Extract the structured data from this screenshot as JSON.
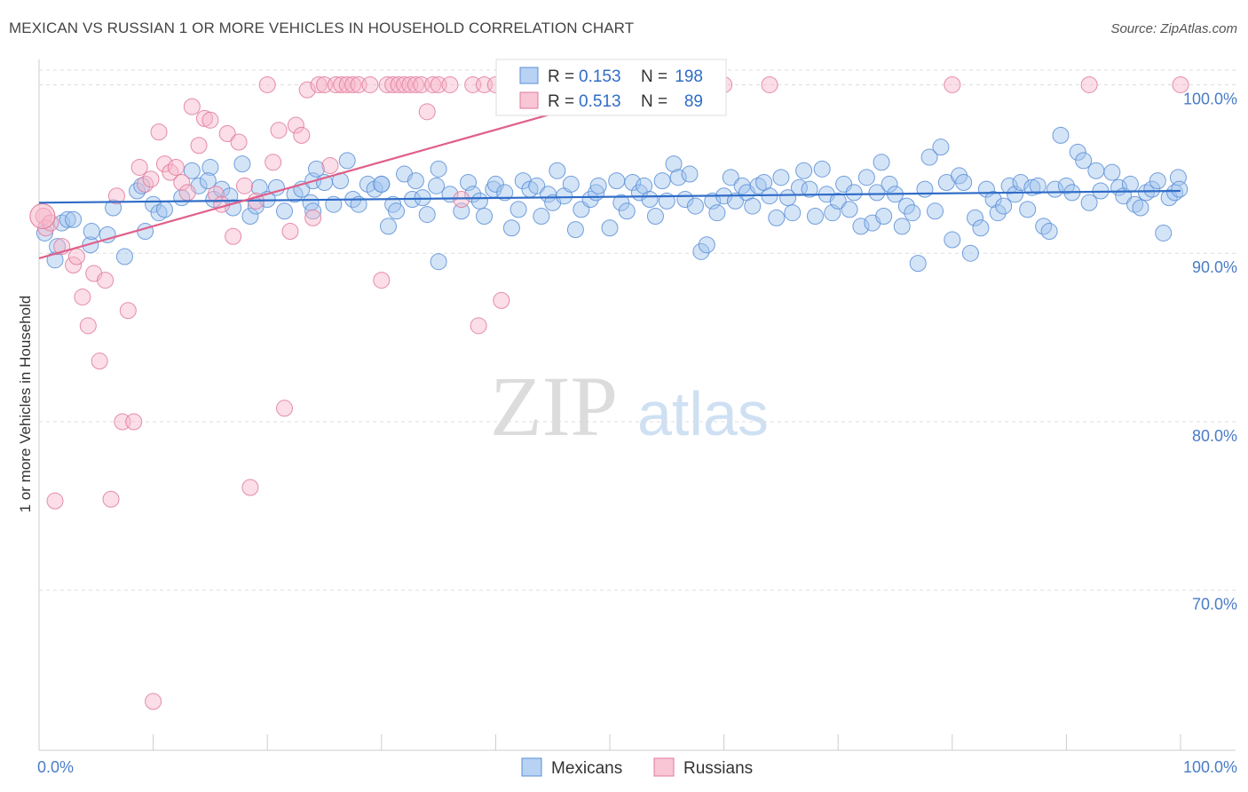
{
  "title": "MEXICAN VS RUSSIAN 1 OR MORE VEHICLES IN HOUSEHOLD CORRELATION CHART",
  "source": "Source: ZipAtlas.com",
  "watermark": {
    "zip": "ZIP",
    "atlas": "atlas"
  },
  "chart_data": {
    "type": "scatter",
    "title": "MEXICAN VS RUSSIAN 1 OR MORE VEHICLES IN HOUSEHOLD CORRELATION CHART",
    "xlabel": "",
    "ylabel": "1 or more Vehicles in Household",
    "xlim": [
      0,
      100
    ],
    "ylim": [
      60.5,
      101.5
    ],
    "x_tick_labels": [
      "0.0%",
      "100.0%"
    ],
    "y_ticks": [
      70,
      80,
      90,
      100
    ],
    "y_tick_labels": [
      "70.0%",
      "80.0%",
      "90.0%",
      "100.0%"
    ],
    "grid": "horizontal dashed",
    "legend": {
      "placement": "top-center",
      "rows": [
        {
          "r_label": "R =",
          "r_value": "0.153",
          "n_label": "N =",
          "n_value": "198"
        },
        {
          "r_label": "R =",
          "r_value": "0.513",
          "n_label": "N =",
          "n_value": "89"
        }
      ]
    },
    "series": [
      {
        "name": "Mexicans",
        "color": "#9fc3ee",
        "stroke": "#5b8fd6",
        "trend_color": "#2f6cc7",
        "trend": {
          "x0": 0,
          "y0": 93.0,
          "x1": 100,
          "y1": 93.7
        },
        "points": [
          [
            0.5,
            91.2
          ],
          [
            1.4,
            89.6
          ],
          [
            1.6,
            90.4
          ],
          [
            2,
            91.8
          ],
          [
            2.5,
            92
          ],
          [
            3,
            92
          ],
          [
            4.5,
            90.5
          ],
          [
            4.6,
            91.3
          ],
          [
            6,
            91.1
          ],
          [
            6.5,
            92.7
          ],
          [
            7.5,
            89.8
          ],
          [
            8.6,
            93.7
          ],
          [
            9,
            94
          ],
          [
            9.3,
            91.3
          ],
          [
            10,
            92.9
          ],
          [
            10.5,
            92.4
          ],
          [
            11,
            92.6
          ],
          [
            12.5,
            93.3
          ],
          [
            13.4,
            94.9
          ],
          [
            14,
            94
          ],
          [
            15,
            95.1
          ],
          [
            15.3,
            93.2
          ],
          [
            16,
            93.8
          ],
          [
            16.7,
            93.4
          ],
          [
            17,
            92.7
          ],
          [
            17.8,
            95.3
          ],
          [
            18.5,
            92.2
          ],
          [
            19,
            92.8
          ],
          [
            19.3,
            93.9
          ],
          [
            20,
            93.2
          ],
          [
            20.8,
            93.9
          ],
          [
            21.5,
            92.5
          ],
          [
            22.4,
            93.5
          ],
          [
            23,
            93.8
          ],
          [
            23.8,
            93
          ],
          [
            24,
            94.3
          ],
          [
            24.3,
            95
          ],
          [
            25,
            94.2
          ],
          [
            25.8,
            92.9
          ],
          [
            26.4,
            94.3
          ],
          [
            27,
            95.5
          ],
          [
            27.5,
            93.2
          ],
          [
            28,
            92.9
          ],
          [
            28.8,
            94.1
          ],
          [
            29.4,
            93.8
          ],
          [
            30,
            94.1
          ],
          [
            30.6,
            91.6
          ],
          [
            31,
            92.9
          ],
          [
            31.3,
            92.5
          ],
          [
            32,
            94.7
          ],
          [
            32.7,
            93.2
          ],
          [
            33,
            94.3
          ],
          [
            33.6,
            93.3
          ],
          [
            34,
            92.3
          ],
          [
            34.8,
            94
          ],
          [
            35,
            95
          ],
          [
            36,
            93.5
          ],
          [
            37,
            92.5
          ],
          [
            37.6,
            94.2
          ],
          [
            38,
            93.5
          ],
          [
            38.6,
            93.1
          ],
          [
            39,
            92.2
          ],
          [
            39.8,
            93.8
          ],
          [
            40,
            94.1
          ],
          [
            40.8,
            93.6
          ],
          [
            41.4,
            91.5
          ],
          [
            42,
            92.6
          ],
          [
            42.4,
            94.3
          ],
          [
            43,
            93.8
          ],
          [
            43.6,
            94
          ],
          [
            44,
            92.2
          ],
          [
            44.6,
            93.5
          ],
          [
            45,
            93
          ],
          [
            45.4,
            94.9
          ],
          [
            46,
            93.4
          ],
          [
            46.6,
            94.1
          ],
          [
            47,
            91.4
          ],
          [
            47.5,
            92.6
          ],
          [
            48.3,
            93.2
          ],
          [
            48.8,
            93.6
          ],
          [
            49,
            94
          ],
          [
            50,
            91.5
          ],
          [
            50.6,
            94.3
          ],
          [
            51,
            93
          ],
          [
            51.5,
            92.5
          ],
          [
            52,
            94.2
          ],
          [
            52.6,
            93.6
          ],
          [
            53,
            94
          ],
          [
            53.5,
            93.2
          ],
          [
            54,
            92.2
          ],
          [
            54.6,
            94.3
          ],
          [
            55,
            93.1
          ],
          [
            55.6,
            95.3
          ],
          [
            56,
            94.5
          ],
          [
            56.6,
            93.2
          ],
          [
            57,
            94.7
          ],
          [
            57.5,
            92.8
          ],
          [
            58,
            90.1
          ],
          [
            58.5,
            90.5
          ],
          [
            59,
            93.1
          ],
          [
            59.4,
            92.4
          ],
          [
            60,
            93.4
          ],
          [
            60.6,
            94.5
          ],
          [
            61,
            93.1
          ],
          [
            61.6,
            94
          ],
          [
            62,
            93.6
          ],
          [
            62.5,
            92.8
          ],
          [
            63,
            94
          ],
          [
            63.5,
            94.2
          ],
          [
            64,
            93.4
          ],
          [
            64.6,
            92.1
          ],
          [
            65,
            94.5
          ],
          [
            65.6,
            93.3
          ],
          [
            66,
            92.4
          ],
          [
            66.6,
            93.9
          ],
          [
            67,
            94.9
          ],
          [
            67.5,
            93.8
          ],
          [
            68,
            92.2
          ],
          [
            68.6,
            95
          ],
          [
            69,
            93.5
          ],
          [
            69.5,
            92.4
          ],
          [
            70,
            93.1
          ],
          [
            70.5,
            94.1
          ],
          [
            71,
            92.6
          ],
          [
            71.4,
            93.6
          ],
          [
            72,
            91.6
          ],
          [
            72.5,
            94.5
          ],
          [
            73,
            91.8
          ],
          [
            73.4,
            93.6
          ],
          [
            73.8,
            95.4
          ],
          [
            74,
            92.2
          ],
          [
            74.5,
            94.1
          ],
          [
            75,
            93.5
          ],
          [
            75.6,
            91.6
          ],
          [
            76,
            92.8
          ],
          [
            76.5,
            92.4
          ],
          [
            77,
            89.4
          ],
          [
            77.6,
            93.8
          ],
          [
            78,
            95.7
          ],
          [
            78.5,
            92.5
          ],
          [
            79,
            96.3
          ],
          [
            79.5,
            94.2
          ],
          [
            80,
            90.8
          ],
          [
            80.6,
            94.6
          ],
          [
            81,
            94.2
          ],
          [
            81.6,
            90
          ],
          [
            82,
            92.1
          ],
          [
            82.5,
            91.5
          ],
          [
            83,
            93.8
          ],
          [
            83.6,
            93.2
          ],
          [
            84,
            92.4
          ],
          [
            84.5,
            92.8
          ],
          [
            85,
            94
          ],
          [
            85.5,
            93.5
          ],
          [
            86,
            94.2
          ],
          [
            86.6,
            92.6
          ],
          [
            87,
            93.9
          ],
          [
            87.5,
            94
          ],
          [
            88,
            91.6
          ],
          [
            88.5,
            91.3
          ],
          [
            89,
            93.8
          ],
          [
            89.5,
            97
          ],
          [
            90,
            94
          ],
          [
            90.5,
            93.6
          ],
          [
            91,
            96
          ],
          [
            91.5,
            95.5
          ],
          [
            92,
            93
          ],
          [
            92.6,
            94.9
          ],
          [
            93,
            93.7
          ],
          [
            94,
            94.8
          ],
          [
            94.6,
            93.9
          ],
          [
            95,
            93.4
          ],
          [
            95.6,
            94.1
          ],
          [
            96,
            92.9
          ],
          [
            96.5,
            92.7
          ],
          [
            97,
            93.6
          ],
          [
            97.5,
            93.8
          ],
          [
            98,
            94.3
          ],
          [
            98.5,
            91.2
          ],
          [
            99,
            93.3
          ],
          [
            99.5,
            93.6
          ],
          [
            99.8,
            94.5
          ],
          [
            99.9,
            93.8
          ],
          [
            35,
            89.5
          ],
          [
            24,
            92.5
          ],
          [
            30,
            94.1
          ],
          [
            14.8,
            94.3
          ]
        ]
      },
      {
        "name": "Russians",
        "color": "#f6b6c9",
        "stroke": "#e07a9b",
        "trend_color": "#e0608a",
        "trend": {
          "x0": 0,
          "y0": 89.7,
          "x1": 54,
          "y1": 100.0
        },
        "points": [
          [
            0.4,
            92.2
          ],
          [
            0.6,
            91.5
          ],
          [
            1,
            91.8
          ],
          [
            1.4,
            75.3
          ],
          [
            2,
            90.4
          ],
          [
            3,
            89.3
          ],
          [
            3.3,
            89.8
          ],
          [
            3.8,
            87.4
          ],
          [
            4.3,
            85.7
          ],
          [
            4.8,
            88.8
          ],
          [
            5.3,
            83.6
          ],
          [
            5.8,
            88.4
          ],
          [
            6.3,
            75.4
          ],
          [
            6.8,
            93.4
          ],
          [
            7.3,
            80
          ],
          [
            7.8,
            86.6
          ],
          [
            8.3,
            80
          ],
          [
            8.8,
            95.1
          ],
          [
            9.3,
            94.1
          ],
          [
            9.8,
            94.4
          ],
          [
            10,
            63.4
          ],
          [
            10.5,
            97.2
          ],
          [
            11,
            95.3
          ],
          [
            11.5,
            94.8
          ],
          [
            12,
            95.1
          ],
          [
            12.5,
            94.2
          ],
          [
            13,
            93.6
          ],
          [
            13.4,
            98.7
          ],
          [
            14,
            96.4
          ],
          [
            14.5,
            98
          ],
          [
            15,
            97.9
          ],
          [
            15.5,
            93.5
          ],
          [
            16,
            92.9
          ],
          [
            16.5,
            97.1
          ],
          [
            17,
            91
          ],
          [
            17.5,
            96.6
          ],
          [
            18,
            94
          ],
          [
            18.5,
            76.1
          ],
          [
            19,
            93.1
          ],
          [
            20,
            100
          ],
          [
            20.5,
            95.4
          ],
          [
            21,
            97.3
          ],
          [
            21.5,
            80.8
          ],
          [
            22,
            91.3
          ],
          [
            22.5,
            97.6
          ],
          [
            23,
            97
          ],
          [
            23.5,
            99.7
          ],
          [
            24,
            92.1
          ],
          [
            24.5,
            100
          ],
          [
            25,
            100
          ],
          [
            25.5,
            95.2
          ],
          [
            26,
            100
          ],
          [
            26.5,
            100
          ],
          [
            27,
            100
          ],
          [
            27.5,
            100
          ],
          [
            28,
            100
          ],
          [
            29,
            100
          ],
          [
            30,
            88.4
          ],
          [
            30.5,
            100
          ],
          [
            31,
            100
          ],
          [
            31.5,
            100
          ],
          [
            32,
            100
          ],
          [
            32.5,
            100
          ],
          [
            33,
            100
          ],
          [
            33.5,
            100
          ],
          [
            34,
            98.4
          ],
          [
            34.5,
            100
          ],
          [
            35,
            100
          ],
          [
            36,
            100
          ],
          [
            37,
            93.2
          ],
          [
            38,
            100
          ],
          [
            38.5,
            85.7
          ],
          [
            39,
            100
          ],
          [
            40,
            100
          ],
          [
            40.5,
            87.2
          ],
          [
            41,
            100
          ],
          [
            42,
            99
          ],
          [
            42.5,
            100
          ],
          [
            43,
            100
          ],
          [
            45,
            100
          ],
          [
            46,
            100
          ],
          [
            48,
            100
          ],
          [
            60,
            100
          ],
          [
            64,
            100
          ],
          [
            80,
            100
          ],
          [
            92,
            100
          ],
          [
            100,
            100
          ]
        ]
      }
    ]
  }
}
